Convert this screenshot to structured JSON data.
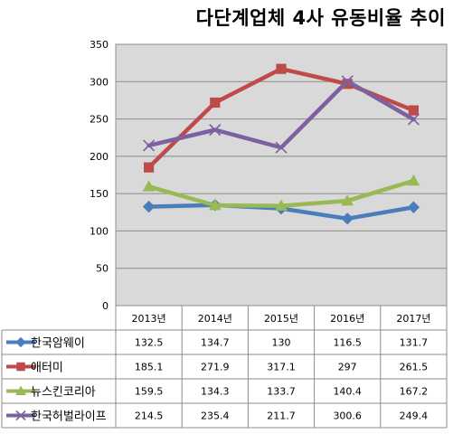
{
  "title": "다단계업체 4사 유동비율 추이",
  "chart_data": {
    "type": "line",
    "title": "다단계업체 4사 유동비율 추이",
    "categories": [
      "2013년",
      "2014년",
      "2015년",
      "2016년",
      "2017년"
    ],
    "ylim": [
      0,
      350
    ],
    "yticks": [
      0,
      50,
      100,
      150,
      200,
      250,
      300,
      350
    ],
    "grid": true,
    "data_table": true,
    "series": [
      {
        "name": "한국암웨이",
        "color": "#4a7ebb",
        "marker": "diamond",
        "values": [
          132.5,
          134.7,
          130,
          116.5,
          131.7
        ],
        "labels": [
          "132.5",
          "134.7",
          "130",
          "116.5",
          "131.7"
        ]
      },
      {
        "name": "애터미",
        "color": "#be4b48",
        "marker": "square",
        "values": [
          185.1,
          271.9,
          317.1,
          297,
          261.5
        ],
        "labels": [
          "185.1",
          "271.9",
          "317.1",
          "297",
          "261.5"
        ]
      },
      {
        "name": "뉴스킨코리아",
        "color": "#98b954",
        "marker": "triangle",
        "values": [
          159.5,
          134.3,
          133.7,
          140.4,
          167.2
        ],
        "labels": [
          "159.5",
          "134.3",
          "133.7",
          "140.4",
          "167.2"
        ]
      },
      {
        "name": "한국허벌라이프",
        "color": "#7d60a0",
        "marker": "x",
        "values": [
          214.5,
          235.4,
          211.7,
          300.6,
          249.4
        ],
        "labels": [
          "214.5",
          "235.4",
          "211.7",
          "300.6",
          "249.4"
        ]
      }
    ]
  }
}
